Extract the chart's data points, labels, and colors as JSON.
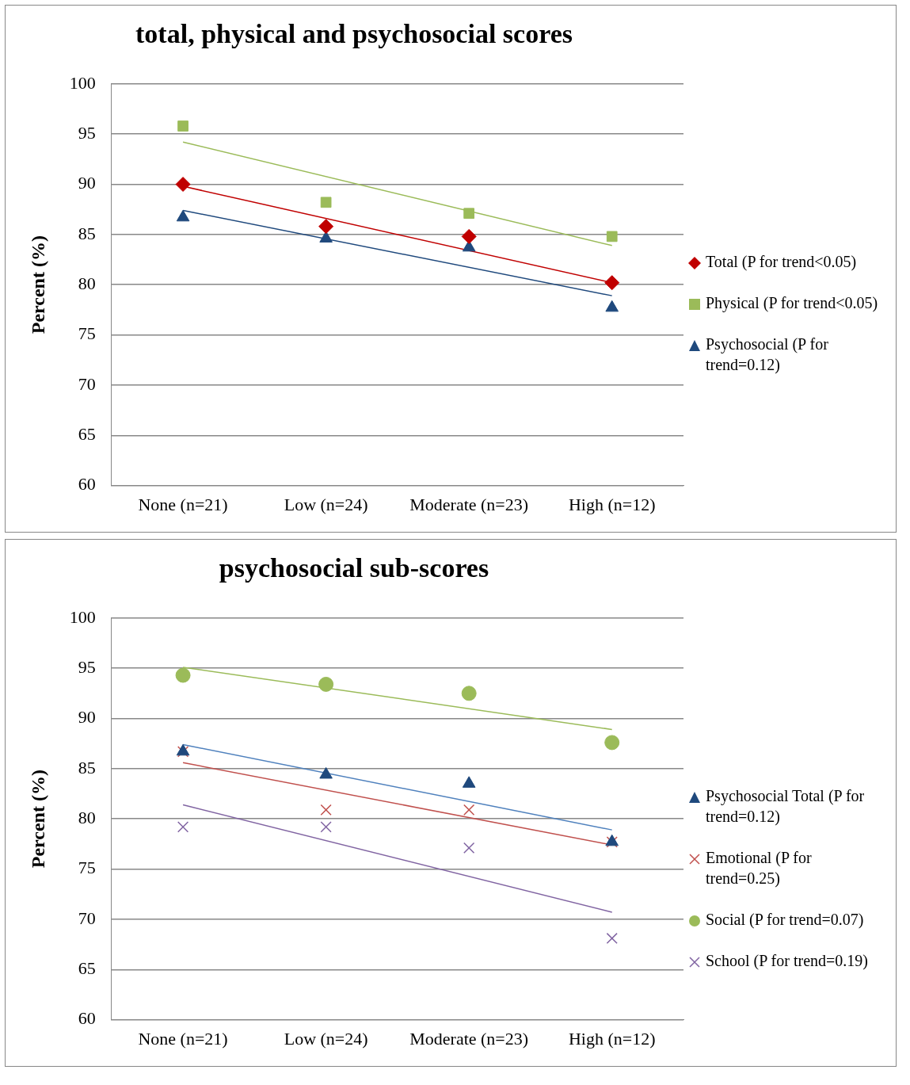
{
  "chart_data": [
    {
      "type": "scatter",
      "title": "total, physical and psychosocial scores",
      "ylabel": "Percent (%)",
      "categories": [
        "None (n=21)",
        "Low (n=24)",
        "Moderate (n=23)",
        "High (n=12)"
      ],
      "ylim": [
        60,
        100
      ],
      "yticks": [
        60,
        65,
        70,
        75,
        80,
        85,
        90,
        95,
        100
      ],
      "grid": "y",
      "legend": "right",
      "series": [
        {
          "name": "Total (P for trend<0.05)",
          "color": "#c00000",
          "marker": "diamond",
          "values": [
            90,
            85.8,
            84.8,
            80.2
          ]
        },
        {
          "name": "Physical (P for trend<0.05)",
          "color": "#9bbb59",
          "marker": "square",
          "values": [
            95.8,
            88.2,
            87.1,
            84.8
          ]
        },
        {
          "name": "Psychosocial (P for trend=0.12)",
          "color": "#1f497d",
          "marker": "triangle",
          "values": [
            86.7,
            84.6,
            83.7,
            77.7
          ]
        },
        {
          "type": "line",
          "color": "#9bbb59",
          "marker": "none",
          "x": [
            "None (n=21)",
            "High (n=12)"
          ],
          "values": [
            94.2,
            83.9
          ]
        },
        {
          "type": "line",
          "color": "#c00000",
          "marker": "none",
          "x": [
            "None (n=21)",
            "High (n=12)"
          ],
          "values": [
            89.8,
            80.2
          ]
        },
        {
          "type": "line",
          "color": "#1f497d",
          "marker": "none",
          "x": [
            "None (n=21)",
            "High (n=12)"
          ],
          "values": [
            87.4,
            78.9
          ]
        }
      ]
    },
    {
      "type": "scatter",
      "title": "psychosocial sub-scores",
      "ylabel": "Percent (%)",
      "categories": [
        "None (n=21)",
        "Low (n=24)",
        "Moderate (n=23)",
        "High (n=12)"
      ],
      "ylim": [
        60,
        100
      ],
      "yticks": [
        60,
        65,
        70,
        75,
        80,
        85,
        90,
        95,
        100
      ],
      "grid": "y",
      "legend": "right",
      "series": [
        {
          "name": "Psychosocial Total (P for trend=0.12)",
          "color": "#1f497d",
          "marker": "triangle",
          "values": [
            86.7,
            84.4,
            83.5,
            77.7
          ]
        },
        {
          "name": "Emotional (P for trend=0.25)",
          "color": "#c0504d",
          "marker": "cross",
          "values": [
            86.7,
            80.9,
            80.9,
            77.7
          ]
        },
        {
          "name": "Social (P for trend=0.07)",
          "color": "#9bbb59",
          "marker": "circle",
          "values": [
            94.3,
            93.4,
            92.5,
            87.6
          ]
        },
        {
          "name": "School (P for trend=0.19)",
          "color": "#8064a2",
          "marker": "cross",
          "values": [
            79.2,
            79.2,
            77.1,
            68.1
          ]
        },
        {
          "type": "line",
          "color": "#4f81bd",
          "marker": "none",
          "x": [
            "None (n=21)",
            "High (n=12)"
          ],
          "values": [
            87.4,
            78.9
          ]
        },
        {
          "type": "line",
          "color": "#c0504d",
          "marker": "none",
          "x": [
            "None (n=21)",
            "High (n=12)"
          ],
          "values": [
            85.6,
            77.4
          ]
        },
        {
          "type": "line",
          "color": "#9bbb59",
          "marker": "none",
          "x": [
            "None (n=21)",
            "High (n=12)"
          ],
          "values": [
            95.1,
            88.9
          ]
        },
        {
          "type": "line",
          "color": "#8064a2",
          "marker": "none",
          "x": [
            "None (n=21)",
            "High (n=12)"
          ],
          "values": [
            81.4,
            70.7
          ]
        }
      ]
    }
  ]
}
